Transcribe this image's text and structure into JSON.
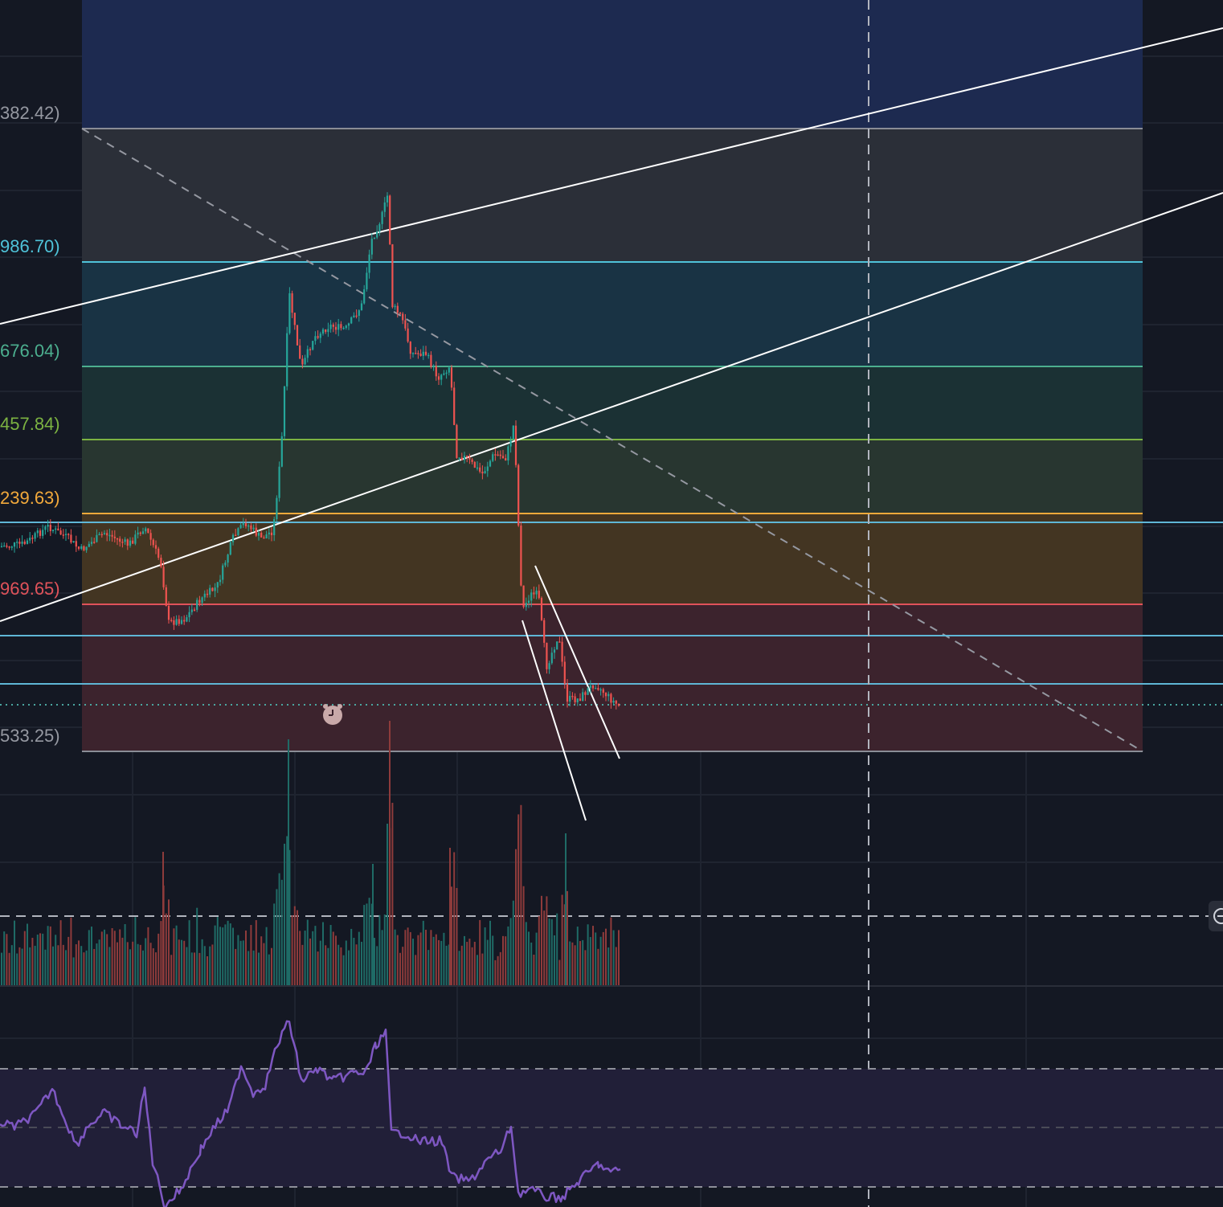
{
  "fib_levels": [
    {
      "label": "382.42)",
      "color": "#9598a1"
    },
    {
      "label": "986.70)",
      "color": "#4fc3d9"
    },
    {
      "label": "676.04)",
      "color": "#4caf8f"
    },
    {
      "label": "457.84)",
      "color": "#7cb342"
    },
    {
      "label": "239.63)",
      "color": "#f2a93b"
    },
    {
      "label": "969.65)",
      "color": "#e0525a"
    },
    {
      "label": "533.25)",
      "color": "#9598a1"
    }
  ],
  "colors": {
    "up": "#26a69a",
    "down": "#ef5350",
    "rsi_line": "#7e57c2",
    "trendline": "#ffffff",
    "horizontal_line": "#5fb6d6"
  },
  "icons": {
    "alarm": "alarm-clock-icon",
    "scroll": "scroll-to-realtime-icon"
  }
}
